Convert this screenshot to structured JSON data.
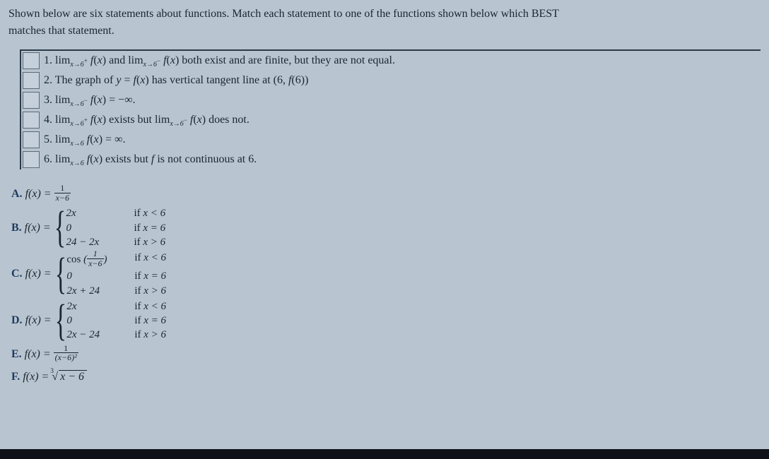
{
  "intro": {
    "line1": "Shown below are six statements about functions. Match each statement to one of the functions shown below which BEST",
    "line2": "matches that statement."
  },
  "statements": [
    {
      "num": "1.",
      "html": "<span class='lim'>lim</span><span class='limsub'>x→6<span class='smallsup'>+</span></span> <span class='math'>f</span>(<span class='math'>x</span>) <span class='roman'>and</span> <span class='lim'>lim</span><span class='limsub'>x→6<span class='smallsup'>−</span></span> <span class='math'>f</span>(<span class='math'>x</span>) both exist and are finite, but they are not equal."
    },
    {
      "num": "2.",
      "html": "The graph of <span class='math'>y</span> = <span class='math'>f</span>(<span class='math'>x</span>) has vertical tangent line at (6, <span class='math'>f</span>(6))"
    },
    {
      "num": "3.",
      "html": "<span class='lim'>lim</span><span class='limsub'>x→6<span class='smallsup'>−</span></span> <span class='math'>f</span>(<span class='math'>x</span>) = −<span class='inf'>∞</span>."
    },
    {
      "num": "4.",
      "html": "<span class='lim'>lim</span><span class='limsub'>x→6<span class='smallsup'>+</span></span> <span class='math'>f</span>(<span class='math'>x</span>) exists but <span class='lim'>lim</span><span class='limsub'>x→6<span class='smallsup'>−</span></span> <span class='math'>f</span>(<span class='math'>x</span>) does not."
    },
    {
      "num": "5.",
      "html": "<span class='lim'>lim</span><span class='limsub'>x→6</span> <span class='math'>f</span>(<span class='math'>x</span>) = <span class='inf'>∞</span>."
    },
    {
      "num": "6.",
      "html": "<span class='lim'>lim</span><span class='limsub'>x→6</span> <span class='math'>f</span>(<span class='math'>x</span>) exists but <span class='math'>f</span> is not continuous at 6."
    }
  ],
  "functions": {
    "A": {
      "label": "A.",
      "frac_num": "1",
      "frac_den": "x−6"
    },
    "B": {
      "label": "B.",
      "rows": [
        {
          "expr": "2x",
          "cond": "if x < 6"
        },
        {
          "expr": "0",
          "cond": "if x = 6"
        },
        {
          "expr": "24 − 2x",
          "cond": "if x > 6"
        }
      ]
    },
    "C": {
      "label": "C.",
      "rows": [
        {
          "expr_html": "<span class='roman'>cos</span> (<span class='frac'><span class='num'>1</span><span class='den'><span class=\"math\">x</span>−6</span></span>)",
          "cond": "if x < 6"
        },
        {
          "expr": "0",
          "cond": "if x = 6"
        },
        {
          "expr": "2x + 24",
          "cond": "if x > 6"
        }
      ]
    },
    "D": {
      "label": "D.",
      "rows": [
        {
          "expr": "2x",
          "cond": "if x < 6"
        },
        {
          "expr": "0",
          "cond": "if x = 6"
        },
        {
          "expr": "2x − 24",
          "cond": "if x > 6"
        }
      ]
    },
    "E": {
      "label": "E.",
      "frac_num": "1",
      "frac_den": "(x−6)²"
    },
    "F": {
      "label": "F.",
      "root_idx": "3",
      "radicand": "x − 6"
    }
  },
  "fx_eq": "f(x) ="
}
